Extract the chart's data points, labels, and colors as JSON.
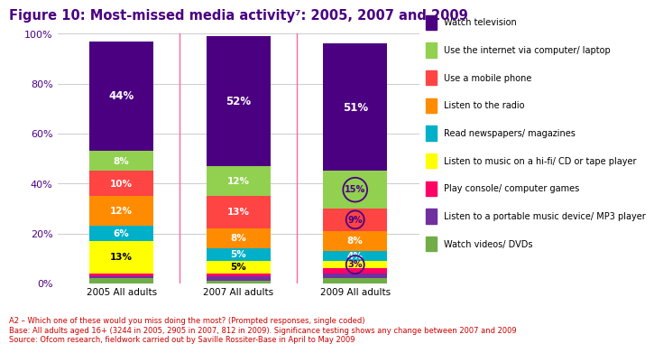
{
  "title": "Figure 10: Most-missed media activity⁷: 2005, 2007 and 2009",
  "categories": [
    "2005 All adults",
    "2007 All adults",
    "2009 All adults"
  ],
  "series": [
    {
      "label": "Watch videos/ DVDs",
      "color": "#70ad47",
      "values": [
        2,
        1,
        2
      ]
    },
    {
      "label": "Listen to a portable music device/ MP3 player",
      "color": "#7030a0",
      "values": [
        1,
        2,
        2
      ]
    },
    {
      "label": "Play console/ computer games",
      "color": "#ff0066",
      "values": [
        1,
        1,
        2
      ]
    },
    {
      "label": "Listen to music on a hi-fi/ CD or tape player",
      "color": "#ffff00",
      "values": [
        13,
        5,
        3
      ]
    },
    {
      "label": "Read newspapers/ magazines",
      "color": "#00b0c8",
      "values": [
        6,
        5,
        4
      ]
    },
    {
      "label": "Listen to the radio",
      "color": "#ff8c00",
      "values": [
        12,
        8,
        8
      ]
    },
    {
      "label": "Use a mobile phone",
      "color": "#ff4444",
      "values": [
        10,
        13,
        9
      ]
    },
    {
      "label": "Use the internet via computer/ laptop",
      "color": "#92d050",
      "values": [
        8,
        12,
        15
      ]
    },
    {
      "label": "Watch television",
      "color": "#4b0082",
      "values": [
        44,
        52,
        51
      ]
    }
  ],
  "circled_2009": [
    7,
    6,
    3
  ],
  "bar_width": 0.55,
  "xlim": [
    -0.55,
    2.55
  ],
  "ylim": [
    0,
    100
  ],
  "yticks": [
    0,
    20,
    40,
    60,
    80,
    100
  ],
  "title_color": "#4b0082",
  "title_fontsize": 10.5,
  "footnote_lines": [
    "A2 – Which one of these would you miss doing the most? (Prompted responses, single coded)",
    "Base: All adults aged 16+ (3244 in 2005, 2905 in 2007, 812 in 2009). Significance testing shows any change between 2007 and 2009",
    "Source: Ofcom research, fieldwork carried out by Saville Rossiter-Base in April to May 2009"
  ],
  "footnote_color": "#cc0000",
  "grid_color": "#cccccc",
  "vline_color": "#ff6699",
  "legend_fontsize": 7.0,
  "label_fontsize": 7.5,
  "tv_label_fontsize": 8.5
}
